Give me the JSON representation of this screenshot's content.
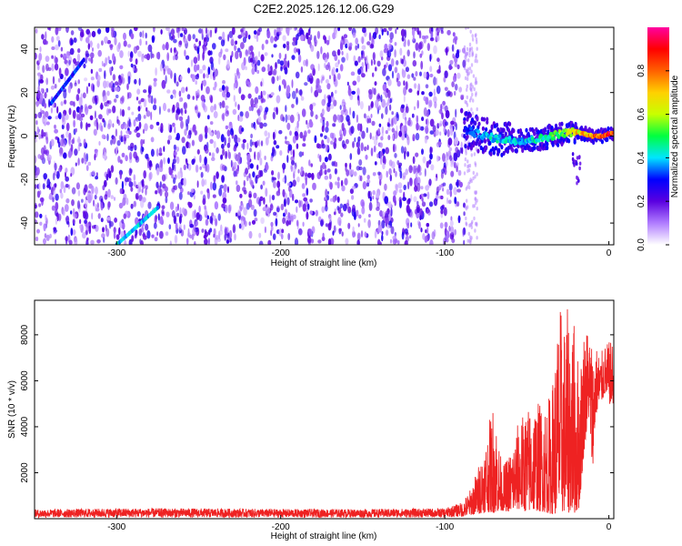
{
  "title": "C2E2.2025.126.12.06.G29",
  "chart_data": [
    {
      "type": "heatmap",
      "xlabel": "Height of straight line (km)",
      "ylabel": "Frequency (Hz)",
      "xlim": [
        -350,
        3
      ],
      "ylim": [
        -50,
        50
      ],
      "xticks": [
        -300,
        -200,
        -100,
        0
      ],
      "xtick_labels": [
        "-300",
        "-200",
        "-100",
        "0"
      ],
      "yticks": [
        -40,
        -20,
        0,
        20,
        40
      ],
      "ytick_labels": [
        "-40",
        "-20",
        "0",
        "20",
        "40"
      ],
      "colorbar": {
        "label": "Normalized spectral amplitude",
        "range": [
          0,
          1
        ],
        "ticks": [
          0.0,
          0.2,
          0.4,
          0.6,
          0.8
        ],
        "tick_labels": [
          "0.0",
          "0.2",
          "0.4",
          "0.6",
          "0.8"
        ],
        "colors": [
          "#ffffff",
          "#b07cff",
          "#5a00e0",
          "#0000ff",
          "#00e5ff",
          "#00ff40",
          "#c8ff00",
          "#ffd000",
          "#ff6000",
          "#ff0000",
          "#ff00a0"
        ]
      },
      "noise_region": {
        "x_from": -350,
        "x_to": -88,
        "freq_from": -50,
        "freq_to": 50,
        "typical_amplitude": 0.2
      },
      "signal_track": {
        "x": [
          -88,
          -80,
          -70,
          -60,
          -50,
          -40,
          -30,
          -20,
          -10,
          -5,
          0,
          3
        ],
        "freq": [
          3,
          1,
          -1,
          -2,
          -2,
          -1,
          1,
          2,
          0,
          0,
          1,
          1
        ],
        "amplitude": [
          0.3,
          0.4,
          0.45,
          0.45,
          0.45,
          0.5,
          0.6,
          0.75,
          0.8,
          0.95,
          0.98,
          0.98
        ]
      },
      "diagonal_streaks": [
        {
          "x": [
            -340,
            -320
          ],
          "freq": [
            15,
            35
          ],
          "amplitude": 0.25
        },
        {
          "x": [
            -300,
            -275
          ],
          "freq": [
            -50,
            -33
          ],
          "amplitude": 0.35
        }
      ]
    },
    {
      "type": "line",
      "xlabel": "Height of straight line (km)",
      "ylabel": "SNR (10 * v/v)",
      "xlim": [
        -350,
        3
      ],
      "ylim": [
        0,
        9500
      ],
      "xticks": [
        -300,
        -200,
        -100,
        0
      ],
      "xtick_labels": [
        "-300",
        "-200",
        "-100",
        "0"
      ],
      "yticks": [
        2000,
        4000,
        6000,
        8000
      ],
      "ytick_labels": [
        "2000",
        "4000",
        "6000",
        "8000"
      ],
      "series": [
        {
          "color": "#ee2222",
          "x": [
            -350,
            -300,
            -250,
            -200,
            -150,
            -100,
            -90,
            -85,
            -80,
            -75,
            -70,
            -65,
            -60,
            -55,
            -50,
            -45,
            -40,
            -35,
            -30,
            -27,
            -25,
            -22,
            -20,
            -18,
            -15,
            -12,
            -10,
            -8,
            -5,
            -2,
            0,
            3
          ],
          "min": [
            50,
            50,
            50,
            50,
            50,
            50,
            80,
            150,
            200,
            300,
            250,
            350,
            300,
            400,
            300,
            350,
            300,
            200,
            200,
            300,
            250,
            300,
            200,
            500,
            3000,
            4500,
            2000,
            4500,
            5000,
            5500,
            5000,
            5000
          ],
          "max": [
            400,
            450,
            450,
            420,
            420,
            450,
            700,
            1200,
            2200,
            3500,
            5200,
            2200,
            3000,
            4300,
            4800,
            5200,
            5000,
            5500,
            9400,
            8600,
            9200,
            9000,
            8200,
            6500,
            8500,
            8400,
            7800,
            7600,
            7200,
            7600,
            7700,
            7700
          ]
        }
      ]
    }
  ]
}
